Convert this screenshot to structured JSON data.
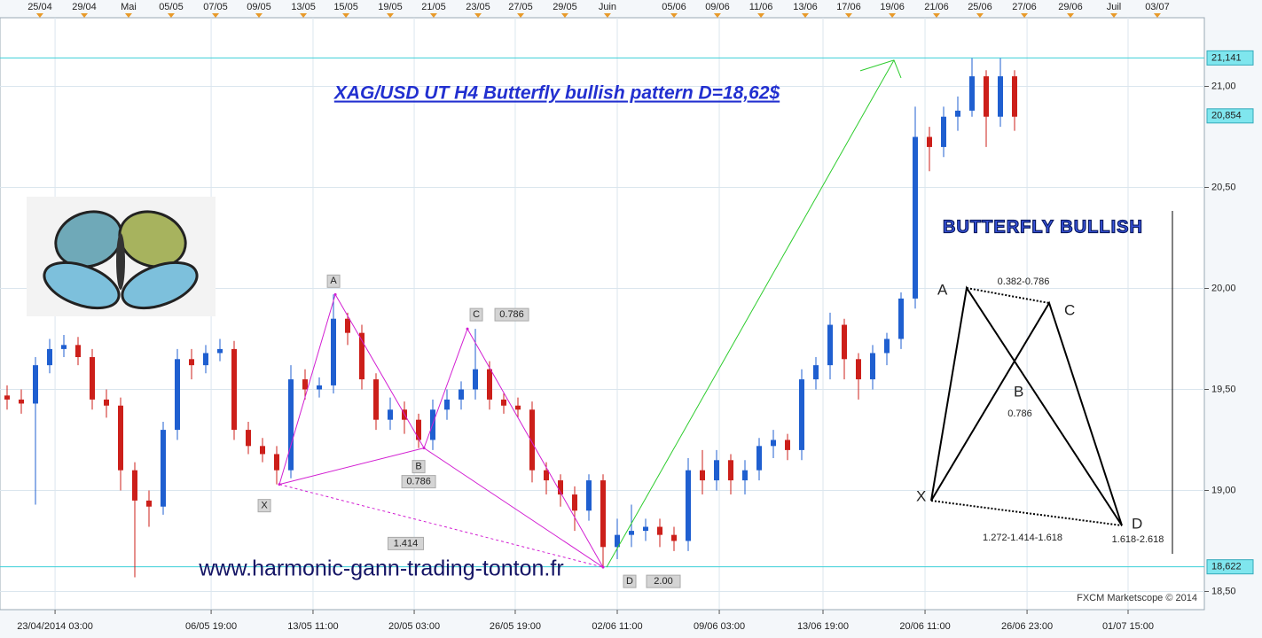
{
  "chart_data": {
    "type": "candlestick",
    "title": "XAG/USD UT H4 Butterfly bullish pattern D=18,62$",
    "watermark": "www.harmonic-gann-trading-tonton.fr",
    "credit": "FXCM Marketscope © 2014",
    "xlim": [
      0,
      84.875
    ],
    "ylim": [
      18.41,
      21.34
    ],
    "grid": true,
    "up_color": "#1f5fd0",
    "down_color": "#cc1f1a",
    "yticks": [
      {
        "value": 18.5,
        "label": "18,50"
      },
      {
        "value": 19,
        "label": "19,00"
      },
      {
        "value": 19.5,
        "label": "19,50"
      },
      {
        "value": 20,
        "label": "20,00"
      },
      {
        "value": 20.5,
        "label": "20,50"
      },
      {
        "value": 21,
        "label": "21,00"
      }
    ],
    "xticks_top": [
      {
        "value": 2.81,
        "label": "25/04"
      },
      {
        "value": 5.94,
        "label": "29/04"
      },
      {
        "value": 9.06,
        "label": "Mai"
      },
      {
        "value": 12.06,
        "label": "05/05"
      },
      {
        "value": 15.19,
        "label": "07/05"
      },
      {
        "value": 18.25,
        "label": "09/05"
      },
      {
        "value": 21.38,
        "label": "13/05"
      },
      {
        "value": 24.38,
        "label": "15/05"
      },
      {
        "value": 27.5,
        "label": "19/05"
      },
      {
        "value": 30.56,
        "label": "21/05"
      },
      {
        "value": 33.69,
        "label": "23/05"
      },
      {
        "value": 36.69,
        "label": "27/05"
      },
      {
        "value": 39.81,
        "label": "29/05"
      },
      {
        "value": 42.81,
        "label": "Juin"
      },
      {
        "value": 47.5,
        "label": "05/06"
      },
      {
        "value": 50.56,
        "label": "09/06"
      },
      {
        "value": 53.63,
        "label": "11/06"
      },
      {
        "value": 56.75,
        "label": "13/06"
      },
      {
        "value": 59.81,
        "label": "17/06"
      },
      {
        "value": 62.88,
        "label": "19/06"
      },
      {
        "value": 66,
        "label": "21/06"
      },
      {
        "value": 69.06,
        "label": "25/06"
      },
      {
        "value": 72.19,
        "label": "27/06"
      },
      {
        "value": 75.44,
        "label": "29/06"
      },
      {
        "value": 78.5,
        "label": "Juil"
      },
      {
        "value": 81.56,
        "label": "03/07"
      }
    ],
    "xticks": [
      {
        "value": 3.88,
        "label": "23/04/2014 03:00"
      },
      {
        "value": 14.88,
        "label": "06/05 19:00"
      },
      {
        "value": 22.06,
        "label": "13/05 11:00"
      },
      {
        "value": 29.19,
        "label": "20/05 03:00"
      },
      {
        "value": 36.31,
        "label": "26/05 19:00"
      },
      {
        "value": 43.5,
        "label": "02/06 11:00"
      },
      {
        "value": 50.69,
        "label": "09/06 03:00"
      },
      {
        "value": 58,
        "label": "13/06 19:00"
      },
      {
        "value": 65.19,
        "label": "20/06 11:00"
      },
      {
        "value": 72.38,
        "label": "26/06 23:00"
      },
      {
        "value": 79.5,
        "label": "01/07 15:00"
      }
    ],
    "open": [
      19.47,
      19.45,
      19.43,
      19.62,
      19.7,
      19.72,
      19.66,
      19.45,
      19.42,
      19.1,
      18.95,
      18.92,
      19.3,
      19.65,
      19.62,
      19.68,
      19.7,
      19.3,
      19.22,
      19.18,
      19.1,
      19.55,
      19.5,
      19.52,
      19.85,
      19.78,
      19.55,
      19.35,
      19.4,
      19.35,
      19.25,
      19.4,
      19.45,
      19.5,
      19.6,
      19.45,
      19.42,
      19.4,
      19.1,
      19.05,
      18.98,
      18.9,
      19.05,
      18.72,
      18.78,
      18.8,
      18.82,
      18.78,
      18.75,
      19.1,
      19.05,
      19.15,
      19.05,
      19.1,
      19.22,
      19.25,
      19.2,
      19.55,
      19.62,
      19.82,
      19.65,
      19.55,
      19.68,
      19.75,
      19.95,
      20.75,
      20.7,
      20.85,
      20.88,
      21.05,
      20.85,
      21.05
    ],
    "high": [
      19.52,
      19.5,
      19.66,
      19.75,
      19.77,
      19.76,
      19.7,
      19.5,
      19.46,
      19.14,
      19.0,
      19.34,
      19.7,
      19.7,
      19.72,
      19.75,
      19.74,
      19.34,
      19.26,
      19.22,
      19.62,
      19.6,
      19.56,
      19.97,
      19.88,
      19.82,
      19.58,
      19.46,
      19.44,
      19.38,
      19.45,
      19.5,
      19.54,
      19.8,
      19.64,
      19.48,
      19.46,
      19.44,
      19.14,
      19.08,
      19.02,
      19.08,
      19.08,
      18.86,
      18.93,
      18.86,
      18.86,
      18.82,
      19.16,
      19.2,
      19.2,
      19.18,
      19.15,
      19.26,
      19.3,
      19.28,
      19.6,
      19.66,
      19.88,
      19.85,
      19.68,
      19.72,
      19.78,
      19.98,
      20.9,
      20.8,
      20.9,
      20.95,
      21.14,
      21.08,
      21.14,
      21.08
    ],
    "low": [
      19.4,
      19.38,
      18.93,
      19.58,
      19.66,
      19.62,
      19.4,
      19.36,
      19.0,
      18.57,
      18.82,
      18.88,
      19.25,
      19.55,
      19.58,
      19.64,
      19.25,
      19.18,
      19.14,
      19.03,
      19.06,
      19.45,
      19.46,
      19.48,
      19.72,
      19.5,
      19.3,
      19.3,
      19.28,
      19.21,
      19.2,
      19.35,
      19.4,
      19.45,
      19.4,
      19.38,
      19.36,
      19.04,
      18.98,
      18.92,
      18.8,
      18.85,
      18.62,
      18.66,
      18.72,
      18.75,
      18.72,
      18.7,
      18.7,
      18.98,
      19.0,
      18.98,
      18.98,
      19.05,
      19.16,
      19.15,
      19.15,
      19.5,
      19.55,
      19.55,
      19.45,
      19.5,
      19.62,
      19.7,
      19.9,
      20.58,
      20.65,
      20.78,
      20.85,
      20.7,
      20.8,
      20.78
    ],
    "close": [
      19.45,
      19.43,
      19.62,
      19.7,
      19.72,
      19.66,
      19.45,
      19.42,
      19.1,
      18.95,
      18.92,
      19.3,
      19.65,
      19.62,
      19.68,
      19.7,
      19.3,
      19.22,
      19.18,
      19.1,
      19.55,
      19.5,
      19.52,
      19.85,
      19.78,
      19.55,
      19.35,
      19.4,
      19.35,
      19.25,
      19.4,
      19.45,
      19.5,
      19.6,
      19.45,
      19.42,
      19.4,
      19.1,
      19.05,
      18.98,
      18.9,
      19.05,
      18.72,
      18.78,
      18.8,
      18.82,
      18.78,
      18.75,
      19.1,
      19.05,
      19.15,
      19.05,
      19.1,
      19.22,
      19.25,
      19.2,
      19.55,
      19.62,
      19.82,
      19.65,
      19.55,
      19.68,
      19.75,
      19.95,
      20.75,
      20.7,
      20.85,
      20.88,
      21.05,
      20.85,
      21.05,
      20.85
    ],
    "hlines": [
      {
        "value": 21.141,
        "label": "21,141"
      },
      {
        "value": 18.622,
        "label": "18,622"
      }
    ],
    "last_price": {
      "value": 20.854,
      "label": "20,854"
    },
    "pattern": {
      "color": "#d21fd2",
      "points": [
        {
          "label": "X",
          "x": 19.69,
          "value": 19.03
        },
        {
          "label": "A",
          "x": 23.63,
          "value": 19.97
        },
        {
          "label": "B",
          "x": 29.88,
          "value": 19.21
        },
        {
          "label": "C",
          "x": 32.94,
          "value": 19.8
        },
        {
          "label": "D",
          "x": 42.5,
          "value": 18.62
        }
      ],
      "ratios": {
        "B": "0.786",
        "C": "0.786",
        "D": "2.00"
      },
      "xd_ratio": "1.414"
    },
    "arrow": {
      "color": "#2ecc2e",
      "x": [
        42.75,
        63
      ],
      "values": [
        18.62,
        21.13
      ]
    }
  },
  "diagram": {
    "title": "BUTTERFLY BULLISH",
    "points": [
      "A",
      "B",
      "C",
      "X",
      "D"
    ],
    "ab_ratio": "0.382-0.786",
    "b_ratio": "0.786",
    "xd_ratio": "1.272-1.414-1.618",
    "d_ratio": "1.618-2.618"
  }
}
